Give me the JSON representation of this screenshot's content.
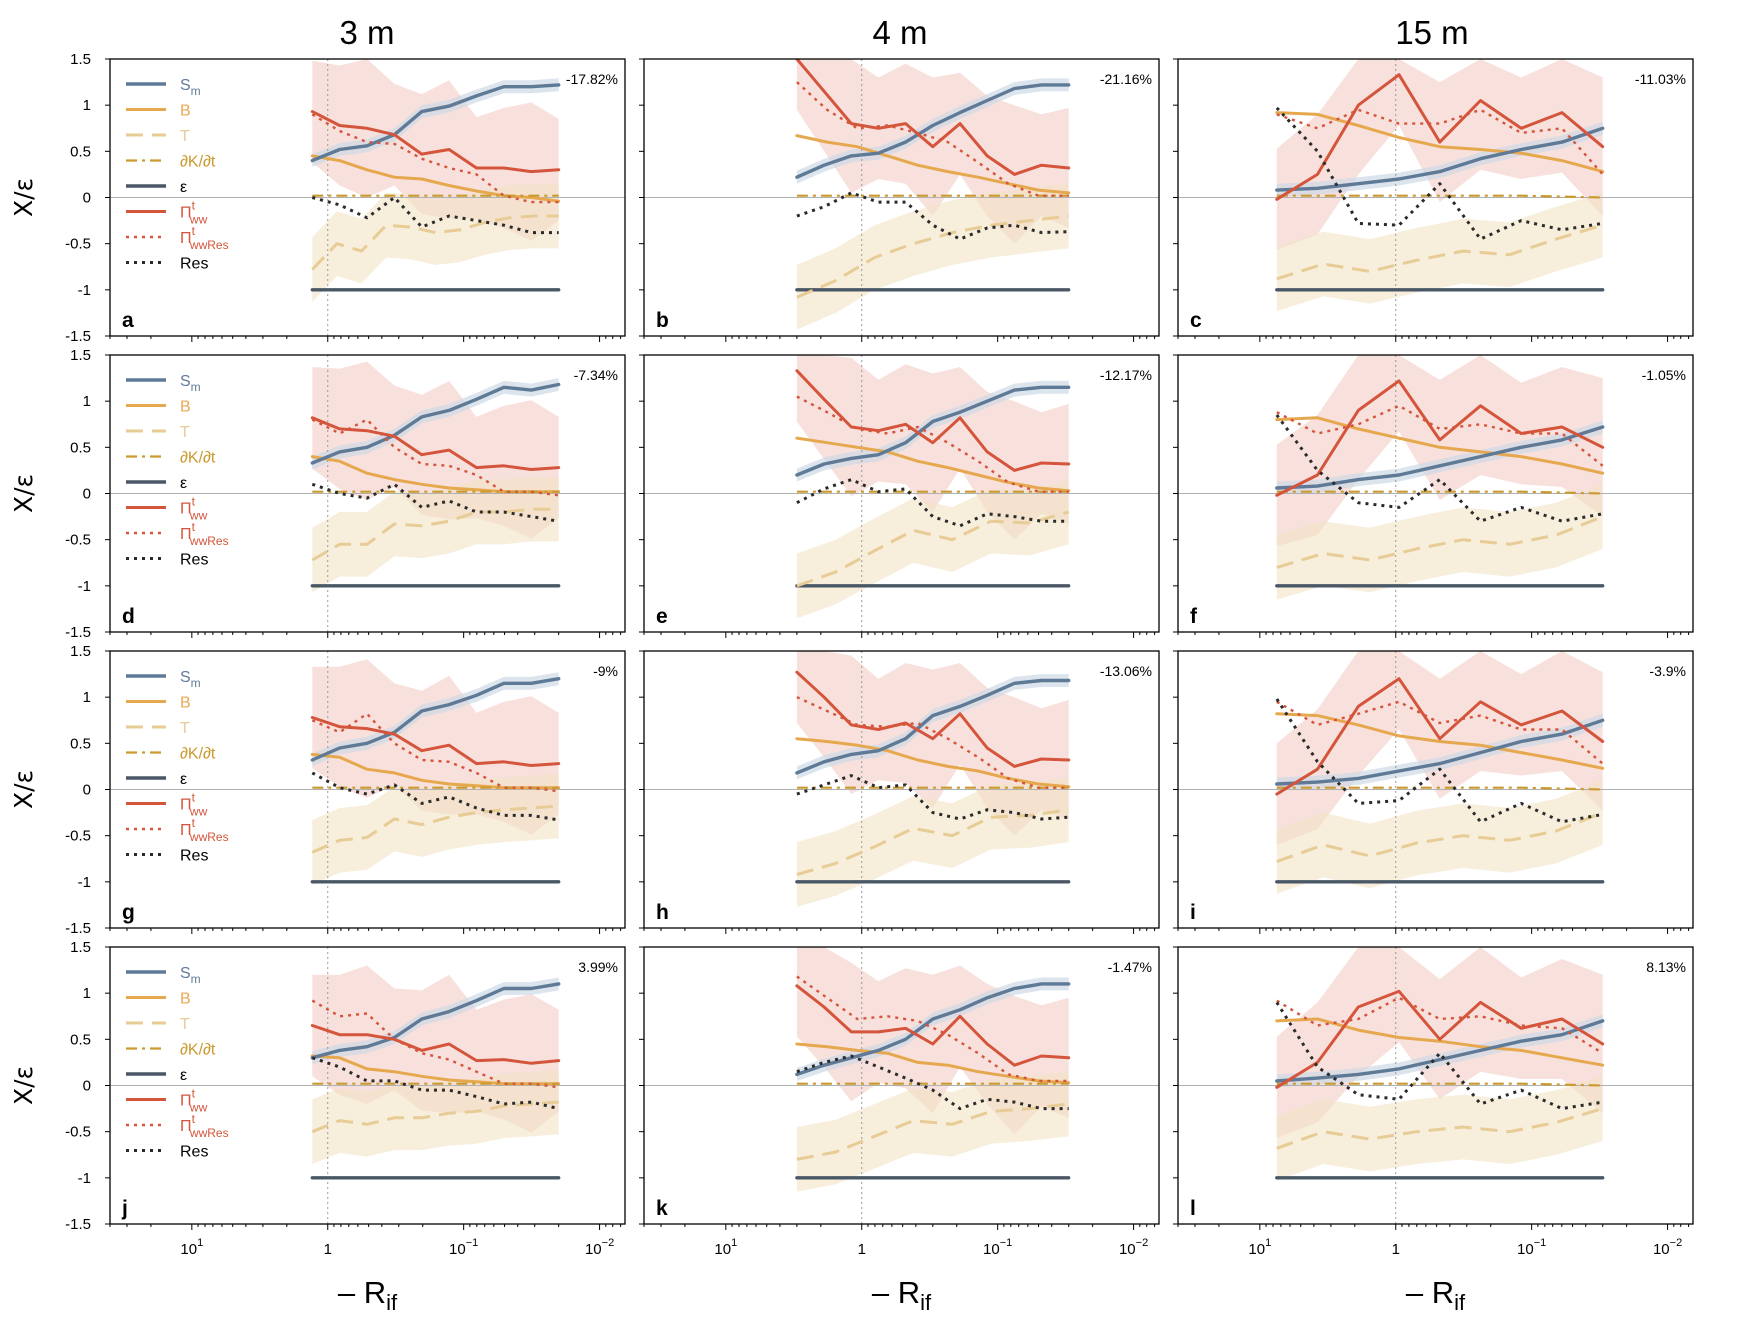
{
  "figure": {
    "column_titles": [
      "3 m",
      "4 m",
      "15 m"
    ],
    "y_label": "X/ε",
    "x_label_prefix": "– R",
    "x_label_sub": "if"
  },
  "colors": {
    "Sm": "#5e7a96",
    "B": "#e6a84e",
    "T": "#e8cc96",
    "dKdt": "#c99a2e",
    "eps": "#4a5766",
    "Pi": "#d4553b",
    "PiRes": "#d4553b",
    "Res": "#2b2b2b",
    "band_Sm": "#cdd8e6",
    "band_T": "#f1e2c5",
    "band_Pi": "#f3c9c0"
  },
  "legend": {
    "items": [
      {
        "key": "Sm",
        "label": "S",
        "sub": "m",
        "sup": "",
        "dash": "solid"
      },
      {
        "key": "B",
        "label": "B",
        "sub": "",
        "sup": "",
        "dash": "solid"
      },
      {
        "key": "T",
        "label": "T",
        "sub": "",
        "sup": "",
        "dash": "dash"
      },
      {
        "key": "dKdt",
        "label": "∂K/∂t",
        "sub": "",
        "sup": "",
        "dash": "dashdot"
      },
      {
        "key": "eps",
        "label": "ε",
        "sub": "",
        "sup": "",
        "dash": "solid"
      },
      {
        "key": "Pi",
        "label": "Π",
        "sub": "ww",
        "sup": "t",
        "dash": "solid"
      },
      {
        "key": "PiRes",
        "label": "Π",
        "sub": "wwRes",
        "sup": "t",
        "dash": "dot"
      },
      {
        "key": "Res",
        "label": "Res",
        "sub": "",
        "sup": "",
        "dash": "dashdot"
      }
    ]
  },
  "chart_data": {
    "type": "line",
    "x_scale": "log (reversed)",
    "x_quantity": "-Rif",
    "y_ticks": [
      "1.5",
      "1",
      "0.5",
      "0",
      "-0.5",
      "-1",
      "-1.5"
    ],
    "ylim": [
      -1.5,
      1.5
    ],
    "x_ticks": [
      {
        "value": 10,
        "base": "10",
        "exp": "1"
      },
      {
        "value": 1,
        "base": "1",
        "exp": ""
      },
      {
        "value": 0.1,
        "base": "10",
        "exp": "−1"
      },
      {
        "value": 0.01,
        "base": "10",
        "exp": "−2"
      }
    ],
    "xlim": [
      40,
      0.0065
    ],
    "vertical_reference": 1,
    "panels": [
      {
        "letter": "a",
        "row": 0,
        "col": 0,
        "pct": "-17.82%",
        "x": [
          1.3,
          1.0,
          0.72,
          0.5,
          0.37,
          0.27,
          0.2,
          0.14,
          0.1,
          0.072,
          0.052,
          0.037,
          0.027,
          0.02
        ],
        "Sm": [
          0.4,
          0.52,
          0.56,
          0.68,
          0.93,
          0.99,
          1.1,
          1.2,
          1.2,
          1.22
        ],
        "B": [
          0.45,
          0.4,
          0.3,
          0.22,
          0.2,
          0.13,
          0.07,
          0.02,
          0.0,
          -0.04
        ],
        "T": [
          -0.78,
          -0.5,
          -0.58,
          -0.3,
          -0.32,
          -0.38,
          -0.35,
          -0.27,
          -0.22,
          -0.2,
          -0.2
        ],
        "dKdt": [
          0.02,
          0.02,
          0.02,
          0.02,
          0.02,
          0.02,
          0.02,
          0.02,
          0.02,
          0.02
        ],
        "eps": [
          -1,
          -1
        ],
        "Pi": [
          0.93,
          0.78,
          0.75,
          0.68,
          0.47,
          0.52,
          0.32,
          0.32,
          0.28,
          0.3
        ],
        "PiRes": [
          0.9,
          0.72,
          0.6,
          0.58,
          0.42,
          0.32,
          0.25,
          0.02,
          -0.05,
          -0.05
        ],
        "Res": [
          0.0,
          -0.08,
          -0.22,
          0.0,
          -0.32,
          -0.2,
          -0.25,
          -0.3,
          -0.38,
          -0.38
        ]
      },
      {
        "letter": "b",
        "row": 0,
        "col": 1,
        "pct": "-21.16%",
        "Sm": [
          0.22,
          0.35,
          0.45,
          0.48,
          0.6,
          0.78,
          0.92,
          1.05,
          1.18,
          1.22,
          1.22
        ],
        "B": [
          0.67,
          0.6,
          0.55,
          0.45,
          0.35,
          0.28,
          0.22,
          0.15,
          0.08,
          0.05
        ],
        "T": [
          -1.08,
          -0.9,
          -0.65,
          -0.5,
          -0.38,
          -0.3,
          -0.25,
          -0.2
        ],
        "dKdt": [
          0.02,
          0.02,
          0.02,
          0.02,
          0.02,
          0.02
        ],
        "eps": [
          -1,
          -1
        ],
        "Pi": [
          1.5,
          1.15,
          0.8,
          0.75,
          0.8,
          0.55,
          0.8,
          0.45,
          0.25,
          0.35,
          0.32
        ],
        "PiRes": [
          1.25,
          0.95,
          0.75,
          0.78,
          0.7,
          0.6,
          0.38,
          0.15,
          0.02,
          0.02
        ],
        "Res": [
          -0.2,
          -0.1,
          0.05,
          -0.05,
          -0.05,
          -0.3,
          -0.45,
          -0.33,
          -0.3,
          -0.38,
          -0.37
        ]
      },
      {
        "letter": "c",
        "row": 0,
        "col": 2,
        "pct": "-11.03%",
        "Sm": [
          0.08,
          0.1,
          0.15,
          0.2,
          0.28,
          0.42,
          0.52,
          0.6,
          0.75
        ],
        "B": [
          0.92,
          0.9,
          0.78,
          0.65,
          0.55,
          0.52,
          0.48,
          0.4,
          0.28
        ],
        "T": [
          -0.88,
          -0.72,
          -0.8,
          -0.68,
          -0.58,
          -0.62,
          -0.45,
          -0.3
        ],
        "dKdt": [
          0.02,
          0.02,
          0.02,
          0.02,
          0.0
        ],
        "eps": [
          -1,
          -1
        ],
        "Pi": [
          -0.02,
          0.25,
          1.0,
          1.33,
          0.6,
          1.05,
          0.75,
          0.92,
          0.55
        ],
        "PiRes": [
          0.9,
          0.75,
          0.95,
          0.8,
          0.8,
          0.95,
          0.7,
          0.75,
          0.25
        ],
        "Res": [
          0.97,
          0.5,
          -0.28,
          -0.3,
          0.15,
          -0.45,
          -0.25,
          -0.35,
          -0.28
        ]
      },
      {
        "letter": "d",
        "row": 1,
        "col": 0,
        "pct": "-7.34%",
        "Sm": [
          0.33,
          0.45,
          0.5,
          0.63,
          0.83,
          0.9,
          1.02,
          1.15,
          1.12,
          1.18
        ],
        "B": [
          0.4,
          0.35,
          0.22,
          0.15,
          0.1,
          0.06,
          0.04,
          0.02,
          0.02,
          0.02
        ],
        "T": [
          -0.72,
          -0.55,
          -0.55,
          -0.33,
          -0.35,
          -0.3,
          -0.2,
          -0.2,
          -0.17,
          -0.17
        ],
        "dKdt": [
          0.02,
          0.02,
          0.02,
          0.02,
          0.02,
          0.02,
          0.02,
          0.02,
          0.02,
          0.02
        ],
        "eps": [
          -1,
          -1
        ],
        "Pi": [
          0.82,
          0.7,
          0.68,
          0.62,
          0.42,
          0.47,
          0.28,
          0.3,
          0.26,
          0.28
        ],
        "PiRes": [
          0.8,
          0.65,
          0.8,
          0.5,
          0.32,
          0.3,
          0.2,
          0.02,
          0.02,
          -0.02
        ],
        "Res": [
          0.1,
          0.0,
          -0.05,
          0.1,
          -0.15,
          -0.08,
          -0.2,
          -0.2,
          -0.25,
          -0.3
        ]
      },
      {
        "letter": "e",
        "row": 1,
        "col": 1,
        "pct": "-12.17%",
        "Sm": [
          0.2,
          0.32,
          0.38,
          0.42,
          0.55,
          0.78,
          0.88,
          1.0,
          1.12,
          1.15,
          1.15
        ],
        "B": [
          0.6,
          0.55,
          0.5,
          0.45,
          0.35,
          0.28,
          0.2,
          0.12,
          0.06,
          0.03
        ],
        "T": [
          -1.0,
          -0.85,
          -0.62,
          -0.4,
          -0.5,
          -0.3,
          -0.32,
          -0.2
        ],
        "dKdt": [
          0.02,
          0.02,
          0.02,
          0.02,
          0.02,
          0.02
        ],
        "eps": [
          -1,
          -1
        ],
        "Pi": [
          1.33,
          1.02,
          0.72,
          0.68,
          0.75,
          0.55,
          0.82,
          0.45,
          0.25,
          0.33,
          0.32
        ],
        "PiRes": [
          1.05,
          0.88,
          0.7,
          0.65,
          0.72,
          0.55,
          0.35,
          0.12,
          0.02,
          0.02
        ],
        "Res": [
          -0.1,
          0.05,
          0.15,
          0.02,
          0.05,
          -0.25,
          -0.35,
          -0.22,
          -0.25,
          -0.3,
          -0.3
        ]
      },
      {
        "letter": "f",
        "row": 1,
        "col": 2,
        "pct": "-1.05%",
        "Sm": [
          0.06,
          0.08,
          0.15,
          0.2,
          0.3,
          0.4,
          0.5,
          0.58,
          0.72
        ],
        "B": [
          0.8,
          0.82,
          0.7,
          0.6,
          0.5,
          0.45,
          0.4,
          0.32,
          0.22
        ],
        "T": [
          -0.8,
          -0.65,
          -0.72,
          -0.6,
          -0.5,
          -0.55,
          -0.45,
          -0.25
        ],
        "dKdt": [
          0.02,
          0.02,
          0.02,
          0.02,
          0.0
        ],
        "eps": [
          -1,
          -1
        ],
        "Pi": [
          -0.02,
          0.2,
          0.9,
          1.22,
          0.58,
          0.95,
          0.65,
          0.72,
          0.5
        ],
        "PiRes": [
          0.88,
          0.65,
          0.75,
          0.95,
          0.7,
          0.75,
          0.65,
          0.65,
          0.3
        ],
        "Res": [
          0.85,
          0.25,
          -0.1,
          -0.15,
          0.15,
          -0.3,
          -0.15,
          -0.3,
          -0.22
        ]
      },
      {
        "letter": "g",
        "row": 2,
        "col": 0,
        "pct": "-9%",
        "Sm": [
          0.32,
          0.45,
          0.5,
          0.62,
          0.85,
          0.92,
          1.02,
          1.15,
          1.15,
          1.2
        ],
        "B": [
          0.38,
          0.35,
          0.22,
          0.18,
          0.1,
          0.06,
          0.04,
          0.02,
          0.02,
          0.02
        ],
        "T": [
          -0.68,
          -0.55,
          -0.52,
          -0.32,
          -0.38,
          -0.3,
          -0.25,
          -0.22,
          -0.2,
          -0.18
        ],
        "dKdt": [
          0.02,
          0.02,
          0.02,
          0.02,
          0.02,
          0.02,
          0.02,
          0.02,
          0.02,
          0.02
        ],
        "eps": [
          -1,
          -1
        ],
        "Pi": [
          0.78,
          0.68,
          0.66,
          0.6,
          0.42,
          0.48,
          0.28,
          0.3,
          0.26,
          0.28
        ],
        "PiRes": [
          0.75,
          0.62,
          0.82,
          0.5,
          0.32,
          0.3,
          0.18,
          0.02,
          0.02,
          -0.02
        ],
        "Res": [
          0.18,
          0.02,
          -0.05,
          0.05,
          -0.15,
          -0.08,
          -0.2,
          -0.28,
          -0.28,
          -0.33
        ]
      },
      {
        "letter": "h",
        "row": 2,
        "col": 1,
        "pct": "-13.06%",
        "Sm": [
          0.18,
          0.3,
          0.38,
          0.42,
          0.55,
          0.8,
          0.9,
          1.02,
          1.15,
          1.18,
          1.18
        ],
        "B": [
          0.55,
          0.52,
          0.48,
          0.42,
          0.32,
          0.25,
          0.2,
          0.12,
          0.06,
          0.03
        ],
        "T": [
          -0.92,
          -0.8,
          -0.62,
          -0.42,
          -0.5,
          -0.3,
          -0.28,
          -0.22
        ],
        "dKdt": [
          0.02,
          0.02,
          0.02,
          0.02,
          0.02,
          0.02
        ],
        "eps": [
          -1,
          -1
        ],
        "Pi": [
          1.27,
          1.0,
          0.7,
          0.65,
          0.72,
          0.55,
          0.82,
          0.45,
          0.25,
          0.33,
          0.32
        ],
        "PiRes": [
          1.0,
          0.85,
          0.7,
          0.68,
          0.72,
          0.55,
          0.35,
          0.12,
          0.02,
          0.02
        ],
        "Res": [
          -0.05,
          0.05,
          0.15,
          0.02,
          0.05,
          -0.25,
          -0.32,
          -0.22,
          -0.25,
          -0.32,
          -0.3
        ]
      },
      {
        "letter": "i",
        "row": 2,
        "col": 2,
        "pct": "-3.9%",
        "Sm": [
          0.06,
          0.08,
          0.12,
          0.2,
          0.28,
          0.4,
          0.52,
          0.6,
          0.75
        ],
        "B": [
          0.82,
          0.8,
          0.7,
          0.58,
          0.52,
          0.48,
          0.4,
          0.32,
          0.23
        ],
        "T": [
          -0.78,
          -0.6,
          -0.72,
          -0.58,
          -0.5,
          -0.55,
          -0.45,
          -0.25
        ],
        "dKdt": [
          0.02,
          0.02,
          0.02,
          0.02,
          0.0
        ],
        "eps": [
          -1,
          -1
        ],
        "Pi": [
          -0.05,
          0.22,
          0.9,
          1.2,
          0.55,
          0.95,
          0.7,
          0.85,
          0.52
        ],
        "PiRes": [
          0.95,
          0.7,
          0.82,
          0.95,
          0.72,
          0.8,
          0.65,
          0.65,
          0.28
        ],
        "Res": [
          0.98,
          0.3,
          -0.15,
          -0.12,
          0.22,
          -0.35,
          -0.15,
          -0.35,
          -0.27
        ]
      },
      {
        "letter": "j",
        "row": 3,
        "col": 0,
        "pct": "3.99%",
        "Sm": [
          0.3,
          0.38,
          0.42,
          0.52,
          0.72,
          0.8,
          0.92,
          1.05,
          1.05,
          1.1
        ],
        "B": [
          0.32,
          0.3,
          0.18,
          0.15,
          0.1,
          0.06,
          0.04,
          0.02,
          0.02,
          0.02
        ],
        "T": [
          -0.5,
          -0.38,
          -0.42,
          -0.35,
          -0.35,
          -0.3,
          -0.28,
          -0.22,
          -0.2,
          -0.18
        ],
        "dKdt": [
          0.02,
          0.02,
          0.02,
          0.02,
          0.02,
          0.02,
          0.02,
          0.02,
          0.02,
          0.02
        ],
        "eps": [
          -1,
          -1
        ],
        "Pi": [
          0.65,
          0.55,
          0.55,
          0.5,
          0.38,
          0.45,
          0.27,
          0.28,
          0.24,
          0.27
        ],
        "PiRes": [
          0.92,
          0.75,
          0.78,
          0.5,
          0.35,
          0.28,
          0.15,
          0.02,
          0.02,
          -0.02
        ],
        "Res": [
          0.3,
          0.2,
          0.05,
          0.05,
          -0.05,
          -0.05,
          -0.12,
          -0.2,
          -0.18,
          -0.25
        ]
      },
      {
        "letter": "k",
        "row": 3,
        "col": 1,
        "pct": "-1.47%",
        "Sm": [
          0.12,
          0.22,
          0.3,
          0.38,
          0.5,
          0.72,
          0.82,
          0.95,
          1.05,
          1.1,
          1.1
        ],
        "B": [
          0.45,
          0.42,
          0.38,
          0.35,
          0.25,
          0.22,
          0.15,
          0.1,
          0.05,
          0.03
        ],
        "T": [
          -0.8,
          -0.72,
          -0.55,
          -0.38,
          -0.42,
          -0.28,
          -0.25,
          -0.2
        ],
        "dKdt": [
          0.02,
          0.02,
          0.02,
          0.02,
          0.02,
          0.02
        ],
        "eps": [
          -1,
          -1
        ],
        "Pi": [
          1.08,
          0.85,
          0.58,
          0.58,
          0.62,
          0.45,
          0.75,
          0.45,
          0.22,
          0.32,
          0.3
        ],
        "PiRes": [
          1.18,
          0.95,
          0.72,
          0.75,
          0.7,
          0.55,
          0.35,
          0.12,
          0.05,
          0.05
        ],
        "Res": [
          0.15,
          0.25,
          0.32,
          0.2,
          0.08,
          -0.05,
          -0.25,
          -0.15,
          -0.18,
          -0.25,
          -0.25
        ]
      },
      {
        "letter": "l",
        "row": 3,
        "col": 2,
        "pct": "8.13%",
        "Sm": [
          0.05,
          0.08,
          0.12,
          0.18,
          0.28,
          0.38,
          0.48,
          0.55,
          0.7
        ],
        "B": [
          0.7,
          0.72,
          0.6,
          0.52,
          0.48,
          0.42,
          0.38,
          0.3,
          0.22
        ],
        "T": [
          -0.68,
          -0.5,
          -0.58,
          -0.5,
          -0.45,
          -0.5,
          -0.4,
          -0.25
        ],
        "dKdt": [
          0.02,
          0.02,
          0.02,
          0.02,
          0.0
        ],
        "eps": [
          -1,
          -1
        ],
        "Pi": [
          -0.02,
          0.25,
          0.85,
          1.02,
          0.5,
          0.9,
          0.62,
          0.72,
          0.45
        ],
        "PiRes": [
          0.92,
          0.65,
          0.72,
          0.95,
          0.72,
          0.75,
          0.65,
          0.62,
          0.35
        ],
        "Res": [
          0.9,
          0.2,
          -0.1,
          -0.15,
          0.35,
          -0.2,
          -0.05,
          -0.25,
          -0.18
        ]
      }
    ]
  }
}
